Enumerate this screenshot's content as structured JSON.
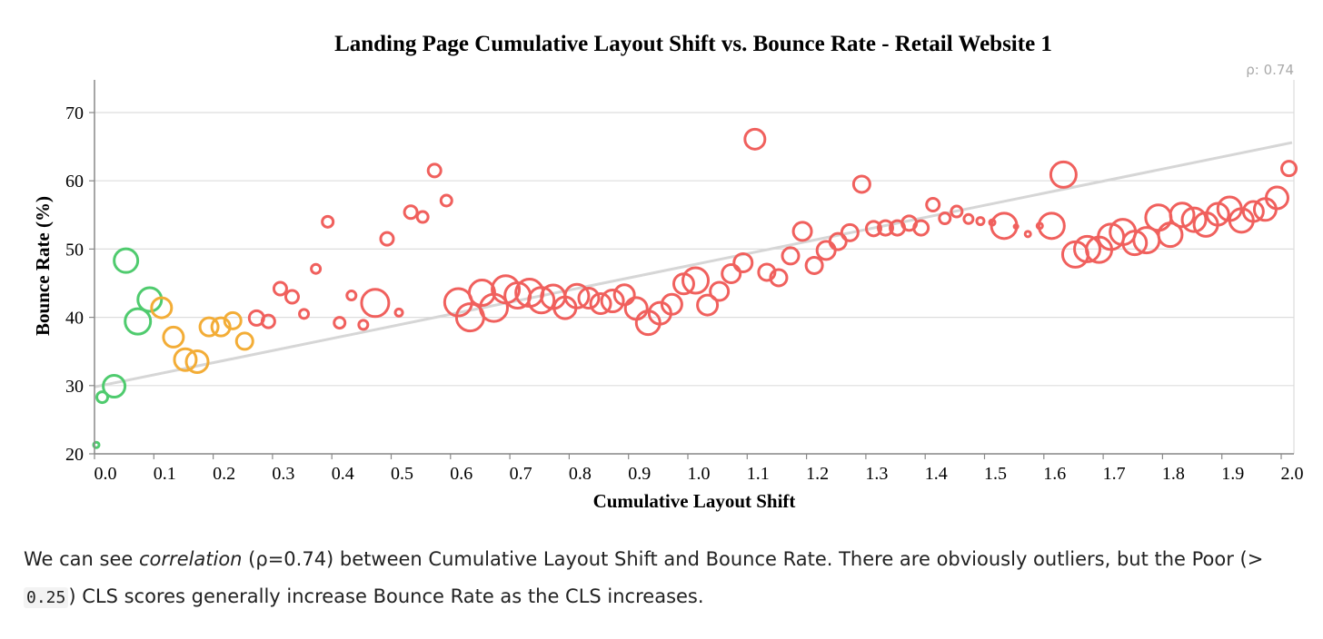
{
  "colors": {
    "good": "#4fcb6e",
    "needs_improvement": "#f3ad37",
    "poor": "#f0605d",
    "trend": "#d6d6d6",
    "grid": "#dddddd",
    "axis": "#888888"
  },
  "chart_data": {
    "type": "scatter",
    "title": "Landing Page Cumulative Layout Shift vs. Bounce Rate - Retail Website 1",
    "xlabel": "Cumulative Layout Shift",
    "ylabel": "Bounce Rate (%)",
    "annotation": "ρ: 0.74",
    "xlim": [
      0,
      2.0
    ],
    "ylim": [
      20,
      75
    ],
    "xticks": [
      "0.0",
      "0.1",
      "0.2",
      "0.3",
      "0.4",
      "0.5",
      "0.6",
      "0.7",
      "0.8",
      "0.9",
      "1.0",
      "1.1",
      "1.2",
      "1.3",
      "1.4",
      "1.5",
      "1.6",
      "1.7",
      "1.8",
      "1.9",
      "2.0"
    ],
    "yticks": [
      "20",
      "30",
      "40",
      "50",
      "60",
      "70"
    ],
    "grid": true,
    "marker": "hollow circle, size varies",
    "trendline": {
      "x": [
        0.0,
        2.0
      ],
      "y": [
        29.8,
        65.6
      ]
    },
    "series": [
      {
        "category": "good",
        "points": [
          {
            "x": 0.0,
            "y": 21.3,
            "r": 3
          },
          {
            "x": 0.01,
            "y": 28.3,
            "r": 6
          },
          {
            "x": 0.03,
            "y": 29.9,
            "r": 12
          },
          {
            "x": 0.05,
            "y": 48.3,
            "r": 13
          },
          {
            "x": 0.07,
            "y": 39.4,
            "r": 14
          },
          {
            "x": 0.09,
            "y": 42.6,
            "r": 13
          }
        ]
      },
      {
        "category": "needs_improvement",
        "points": [
          {
            "x": 0.11,
            "y": 41.4,
            "r": 11
          },
          {
            "x": 0.13,
            "y": 37.1,
            "r": 11
          },
          {
            "x": 0.15,
            "y": 33.8,
            "r": 12
          },
          {
            "x": 0.17,
            "y": 33.5,
            "r": 12
          },
          {
            "x": 0.19,
            "y": 38.6,
            "r": 10
          },
          {
            "x": 0.21,
            "y": 38.6,
            "r": 10
          },
          {
            "x": 0.23,
            "y": 39.5,
            "r": 9
          },
          {
            "x": 0.25,
            "y": 36.5,
            "r": 9
          }
        ]
      },
      {
        "category": "poor",
        "points": [
          {
            "x": 0.27,
            "y": 39.9,
            "r": 8
          },
          {
            "x": 0.29,
            "y": 39.4,
            "r": 7
          },
          {
            "x": 0.31,
            "y": 44.2,
            "r": 7
          },
          {
            "x": 0.33,
            "y": 43.0,
            "r": 7
          },
          {
            "x": 0.35,
            "y": 40.5,
            "r": 5
          },
          {
            "x": 0.37,
            "y": 47.1,
            "r": 5
          },
          {
            "x": 0.39,
            "y": 54.0,
            "r": 6
          },
          {
            "x": 0.41,
            "y": 39.2,
            "r": 6
          },
          {
            "x": 0.43,
            "y": 43.2,
            "r": 5
          },
          {
            "x": 0.45,
            "y": 38.9,
            "r": 5
          },
          {
            "x": 0.47,
            "y": 42.1,
            "r": 15
          },
          {
            "x": 0.49,
            "y": 51.5,
            "r": 7
          },
          {
            "x": 0.51,
            "y": 40.7,
            "r": 4
          },
          {
            "x": 0.53,
            "y": 55.4,
            "r": 7
          },
          {
            "x": 0.55,
            "y": 54.7,
            "r": 6
          },
          {
            "x": 0.57,
            "y": 61.5,
            "r": 7
          },
          {
            "x": 0.59,
            "y": 57.1,
            "r": 6
          },
          {
            "x": 0.61,
            "y": 42.2,
            "r": 15
          },
          {
            "x": 0.63,
            "y": 40.0,
            "r": 15
          },
          {
            "x": 0.65,
            "y": 43.6,
            "r": 14
          },
          {
            "x": 0.67,
            "y": 41.4,
            "r": 15
          },
          {
            "x": 0.69,
            "y": 44.1,
            "r": 15
          },
          {
            "x": 0.71,
            "y": 43.2,
            "r": 14
          },
          {
            "x": 0.73,
            "y": 43.6,
            "r": 15
          },
          {
            "x": 0.75,
            "y": 42.5,
            "r": 14
          },
          {
            "x": 0.77,
            "y": 43.0,
            "r": 13
          },
          {
            "x": 0.79,
            "y": 41.4,
            "r": 12
          },
          {
            "x": 0.81,
            "y": 43.1,
            "r": 13
          },
          {
            "x": 0.83,
            "y": 42.8,
            "r": 11
          },
          {
            "x": 0.85,
            "y": 42.0,
            "r": 11
          },
          {
            "x": 0.87,
            "y": 42.4,
            "r": 12
          },
          {
            "x": 0.89,
            "y": 43.3,
            "r": 11
          },
          {
            "x": 0.91,
            "y": 41.3,
            "r": 12
          },
          {
            "x": 0.93,
            "y": 39.2,
            "r": 13
          },
          {
            "x": 0.95,
            "y": 40.6,
            "r": 12
          },
          {
            "x": 0.97,
            "y": 41.9,
            "r": 11
          },
          {
            "x": 0.99,
            "y": 44.9,
            "r": 11
          },
          {
            "x": 1.01,
            "y": 45.4,
            "r": 14
          },
          {
            "x": 1.03,
            "y": 41.8,
            "r": 11
          },
          {
            "x": 1.05,
            "y": 43.8,
            "r": 10
          },
          {
            "x": 1.07,
            "y": 46.4,
            "r": 10
          },
          {
            "x": 1.09,
            "y": 48.0,
            "r": 10
          },
          {
            "x": 1.11,
            "y": 66.1,
            "r": 11
          },
          {
            "x": 1.13,
            "y": 46.6,
            "r": 9
          },
          {
            "x": 1.15,
            "y": 45.8,
            "r": 9
          },
          {
            "x": 1.17,
            "y": 49.0,
            "r": 9
          },
          {
            "x": 1.19,
            "y": 52.6,
            "r": 10
          },
          {
            "x": 1.21,
            "y": 47.6,
            "r": 9
          },
          {
            "x": 1.23,
            "y": 49.8,
            "r": 10
          },
          {
            "x": 1.25,
            "y": 51.1,
            "r": 9
          },
          {
            "x": 1.27,
            "y": 52.4,
            "r": 9
          },
          {
            "x": 1.29,
            "y": 59.5,
            "r": 9
          },
          {
            "x": 1.31,
            "y": 53.0,
            "r": 8
          },
          {
            "x": 1.33,
            "y": 53.1,
            "r": 8
          },
          {
            "x": 1.35,
            "y": 53.1,
            "r": 8
          },
          {
            "x": 1.37,
            "y": 53.8,
            "r": 8
          },
          {
            "x": 1.39,
            "y": 53.1,
            "r": 8
          },
          {
            "x": 1.41,
            "y": 56.5,
            "r": 7
          },
          {
            "x": 1.43,
            "y": 54.5,
            "r": 6
          },
          {
            "x": 1.45,
            "y": 55.5,
            "r": 6
          },
          {
            "x": 1.47,
            "y": 54.4,
            "r": 5
          },
          {
            "x": 1.49,
            "y": 54.1,
            "r": 4
          },
          {
            "x": 1.51,
            "y": 53.9,
            "r": 3
          },
          {
            "x": 1.53,
            "y": 53.4,
            "r": 14
          },
          {
            "x": 1.55,
            "y": 53.3,
            "r": 2
          },
          {
            "x": 1.57,
            "y": 52.2,
            "r": 3
          },
          {
            "x": 1.59,
            "y": 53.4,
            "r": 3
          },
          {
            "x": 1.61,
            "y": 53.4,
            "r": 14
          },
          {
            "x": 1.63,
            "y": 60.9,
            "r": 14
          },
          {
            "x": 1.65,
            "y": 49.2,
            "r": 14
          },
          {
            "x": 1.67,
            "y": 50.0,
            "r": 14
          },
          {
            "x": 1.69,
            "y": 49.9,
            "r": 14
          },
          {
            "x": 1.71,
            "y": 51.8,
            "r": 14
          },
          {
            "x": 1.73,
            "y": 52.5,
            "r": 14
          },
          {
            "x": 1.75,
            "y": 50.9,
            "r": 13
          },
          {
            "x": 1.77,
            "y": 51.3,
            "r": 14
          },
          {
            "x": 1.79,
            "y": 54.6,
            "r": 14
          },
          {
            "x": 1.81,
            "y": 52.1,
            "r": 13
          },
          {
            "x": 1.83,
            "y": 55.0,
            "r": 13
          },
          {
            "x": 1.85,
            "y": 54.3,
            "r": 13
          },
          {
            "x": 1.87,
            "y": 53.6,
            "r": 13
          },
          {
            "x": 1.89,
            "y": 55.1,
            "r": 12
          },
          {
            "x": 1.91,
            "y": 55.9,
            "r": 13
          },
          {
            "x": 1.93,
            "y": 54.2,
            "r": 13
          },
          {
            "x": 1.95,
            "y": 55.5,
            "r": 11
          },
          {
            "x": 1.97,
            "y": 55.8,
            "r": 12
          },
          {
            "x": 1.99,
            "y": 57.5,
            "r": 12
          },
          {
            "x": 2.01,
            "y": 61.8,
            "r": 8
          }
        ]
      }
    ]
  },
  "caption": {
    "part1": "We can see ",
    "em": "correlation",
    "part2": " (ρ=0.74) between Cumulative Layout Shift and Bounce Rate. There are obviously outliers, but the Poor (> ",
    "code": "0.25",
    "part3": ") CLS scores generally increase Bounce Rate as the CLS increases."
  }
}
